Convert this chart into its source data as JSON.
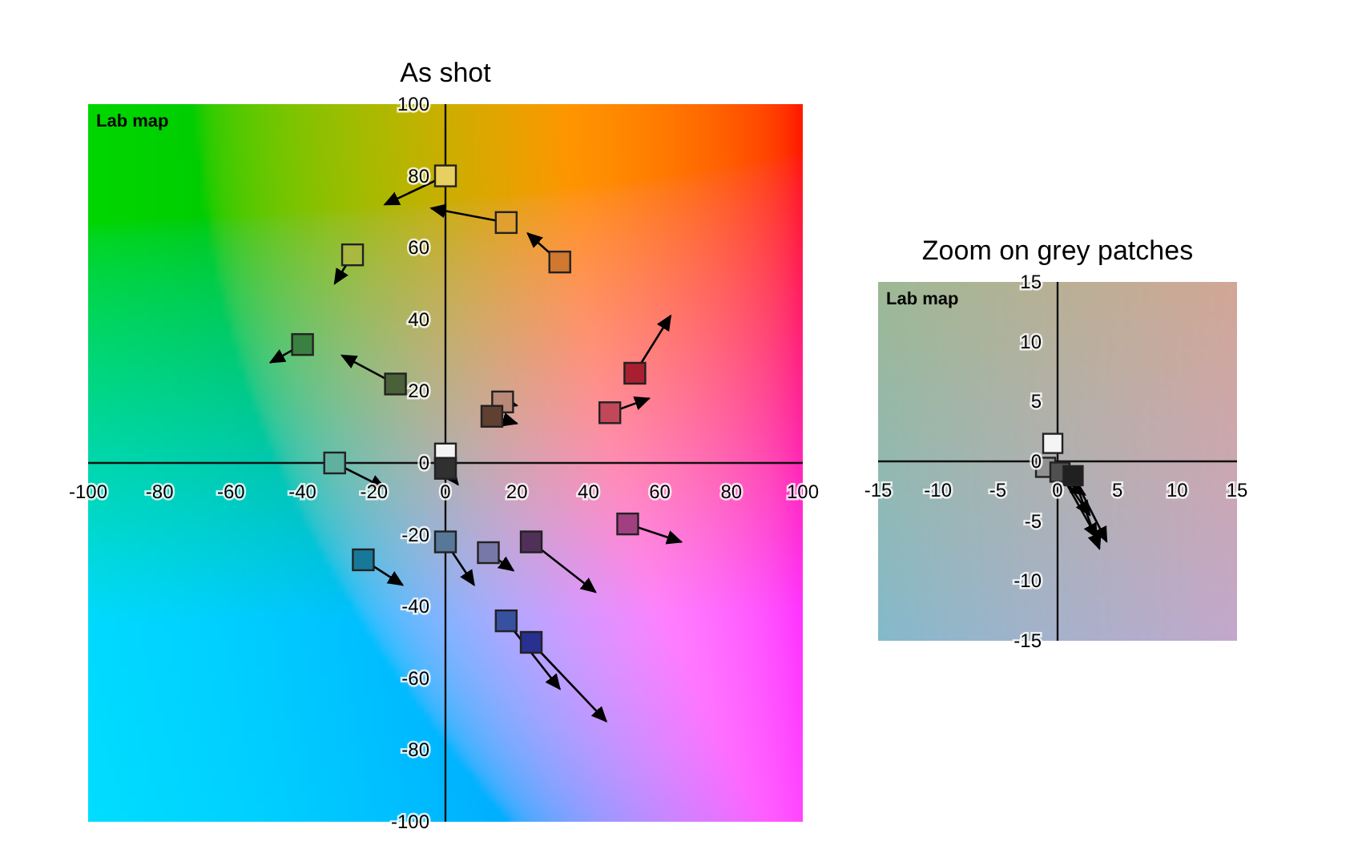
{
  "chart_data": [
    {
      "type": "scatter",
      "title": "As shot",
      "annotations": [
        "Lab map"
      ],
      "xlim": [
        -100,
        100
      ],
      "ylim": [
        -100,
        100
      ],
      "xticks": [
        -100,
        -80,
        -60,
        -40,
        -20,
        0,
        20,
        40,
        60,
        80,
        100
      ],
      "yticks": [
        -100,
        -80,
        -60,
        -40,
        -20,
        0,
        20,
        40,
        60,
        80,
        100
      ],
      "series": [
        {
          "type": "line",
          "color": "#000000",
          "x": [
            0,
            -17
          ],
          "values": [
            80,
            72
          ]
        },
        {
          "type": "line",
          "color": "#000000",
          "x": [
            17,
            -4
          ],
          "values": [
            67,
            71
          ]
        },
        {
          "type": "line",
          "color": "#000000",
          "x": [
            32,
            23
          ],
          "values": [
            56,
            64
          ]
        },
        {
          "type": "line",
          "color": "#000000",
          "x": [
            -26,
            -31
          ],
          "values": [
            58,
            50
          ]
        },
        {
          "type": "line",
          "color": "#000000",
          "x": [
            -40,
            -49
          ],
          "values": [
            33,
            28
          ]
        },
        {
          "type": "line",
          "color": "#000000",
          "x": [
            -14,
            -29
          ],
          "values": [
            22,
            30
          ]
        },
        {
          "type": "line",
          "color": "#000000",
          "x": [
            -31,
            -17
          ],
          "values": [
            0,
            -7
          ]
        },
        {
          "type": "line",
          "color": "#000000",
          "x": [
            -23,
            -12
          ],
          "values": [
            -27,
            -34
          ]
        },
        {
          "type": "line",
          "color": "#000000",
          "x": [
            0,
            8
          ],
          "values": [
            -22,
            -34
          ]
        },
        {
          "type": "line",
          "color": "#000000",
          "x": [
            12,
            19
          ],
          "values": [
            -25,
            -30
          ]
        },
        {
          "type": "line",
          "color": "#000000",
          "x": [
            24,
            42
          ],
          "values": [
            -22,
            -36
          ]
        },
        {
          "type": "line",
          "color": "#000000",
          "x": [
            51,
            66
          ],
          "values": [
            -17,
            -22
          ]
        },
        {
          "type": "line",
          "color": "#000000",
          "x": [
            17,
            32
          ],
          "values": [
            -44,
            -63
          ]
        },
        {
          "type": "line",
          "color": "#000000",
          "x": [
            24,
            45
          ],
          "values": [
            -50,
            -72
          ]
        },
        {
          "type": "line",
          "color": "#000000",
          "x": [
            53,
            63
          ],
          "values": [
            25,
            41
          ]
        },
        {
          "type": "line",
          "color": "#000000",
          "x": [
            46,
            57
          ],
          "values": [
            14,
            18
          ]
        },
        {
          "type": "line",
          "color": "#000000",
          "x": [
            16,
            20
          ],
          "values": [
            17,
            16
          ]
        },
        {
          "type": "line",
          "color": "#000000",
          "x": [
            13,
            20
          ],
          "values": [
            13,
            11
          ]
        },
        {
          "type": "line",
          "color": "#000000",
          "x": [
            0,
            3.5
          ],
          "values": [
            -1.5,
            -6
          ]
        },
        {
          "marker": "square",
          "x": [
            0,
            17,
            32,
            -26,
            -40,
            -14,
            -31,
            -23,
            0,
            12,
            24,
            51,
            17,
            24,
            53,
            46,
            16,
            13,
            0,
            0
          ],
          "values": [
            80,
            67,
            56,
            58,
            33,
            22,
            0,
            -27,
            -22,
            -25,
            -22,
            -17,
            -44,
            -50,
            25,
            14,
            17,
            13,
            2.5,
            -1.5
          ],
          "colors": [
            "#e8d060",
            "#e0a030",
            "#d07830",
            "#a8b840",
            "#3a8040",
            "#4a6038",
            "#60b0a0",
            "#18789a",
            "#58789a",
            "#7878a8",
            "#503058",
            "#a04080",
            "#3850a0",
            "#283090",
            "#a82030",
            "#c04858",
            "#b88878",
            "#604030",
            "#f4f4f4",
            "#303030"
          ]
        }
      ]
    },
    {
      "type": "scatter",
      "title": "Zoom on grey patches",
      "annotations": [
        "Lab map"
      ],
      "xlim": [
        -15,
        15
      ],
      "ylim": [
        -15,
        15
      ],
      "xticks": [
        -15,
        -10,
        -5,
        0,
        5,
        10,
        15
      ],
      "yticks": [
        -15,
        -10,
        -5,
        0,
        5,
        10,
        15
      ],
      "series": [
        {
          "type": "line",
          "color": "#000000",
          "x": [
            -1,
            2.3
          ],
          "values": [
            -0.5,
            -2.8
          ]
        },
        {
          "type": "line",
          "color": "#000000",
          "x": [
            0.2,
            2.7
          ],
          "values": [
            -0.9,
            -4.5
          ]
        },
        {
          "type": "line",
          "color": "#000000",
          "x": [
            0.2,
            3.3
          ],
          "values": [
            -0.9,
            -6.4
          ]
        },
        {
          "type": "line",
          "color": "#000000",
          "x": [
            1.3,
            4.1
          ],
          "values": [
            -1.2,
            -6.7
          ]
        },
        {
          "type": "line",
          "color": "#000000",
          "x": [
            1.3,
            3.5
          ],
          "values": [
            -1.2,
            -7.3
          ]
        },
        {
          "marker": "square",
          "x": [
            -0.4,
            -1,
            0.2,
            1.3
          ],
          "values": [
            1.5,
            -0.5,
            -0.9,
            -1.2
          ],
          "colors": [
            "#f4f4f4",
            "#909090",
            "#505050",
            "#202020"
          ]
        }
      ]
    }
  ]
}
